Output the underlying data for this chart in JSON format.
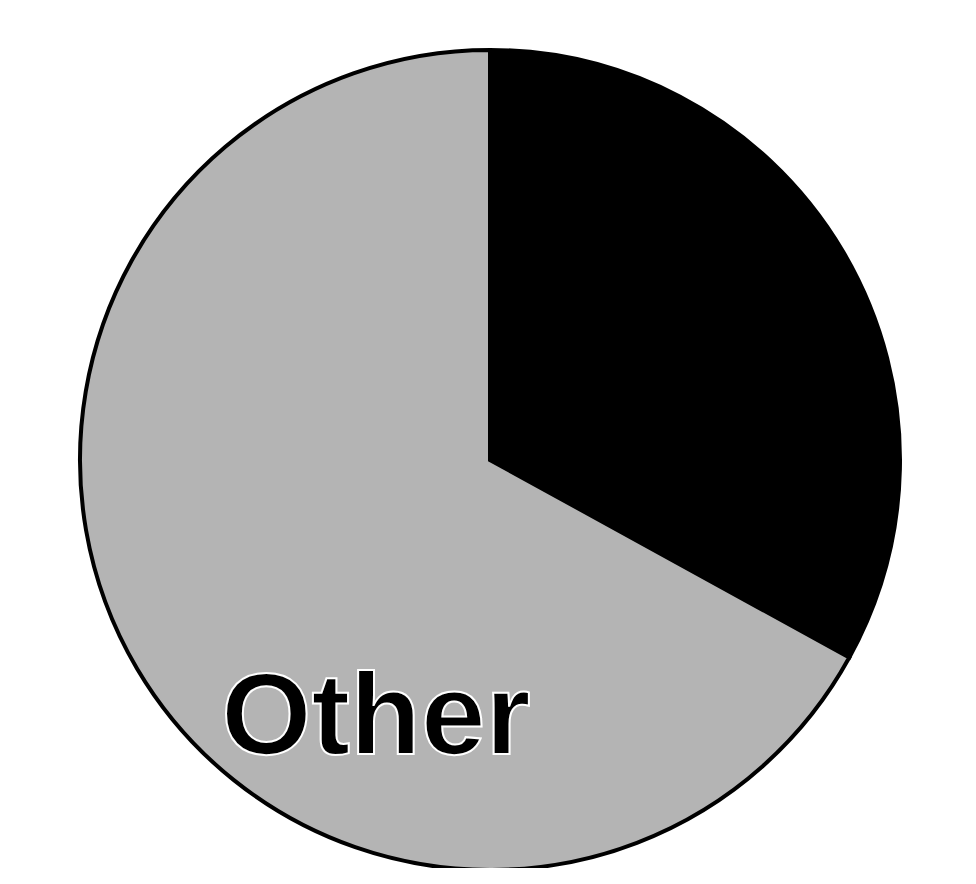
{
  "chart_data": {
    "type": "pie",
    "categories": [
      null,
      "Other"
    ],
    "values": [
      33,
      67
    ],
    "colors": [
      "#000000",
      "#b4b4b4"
    ]
  }
}
